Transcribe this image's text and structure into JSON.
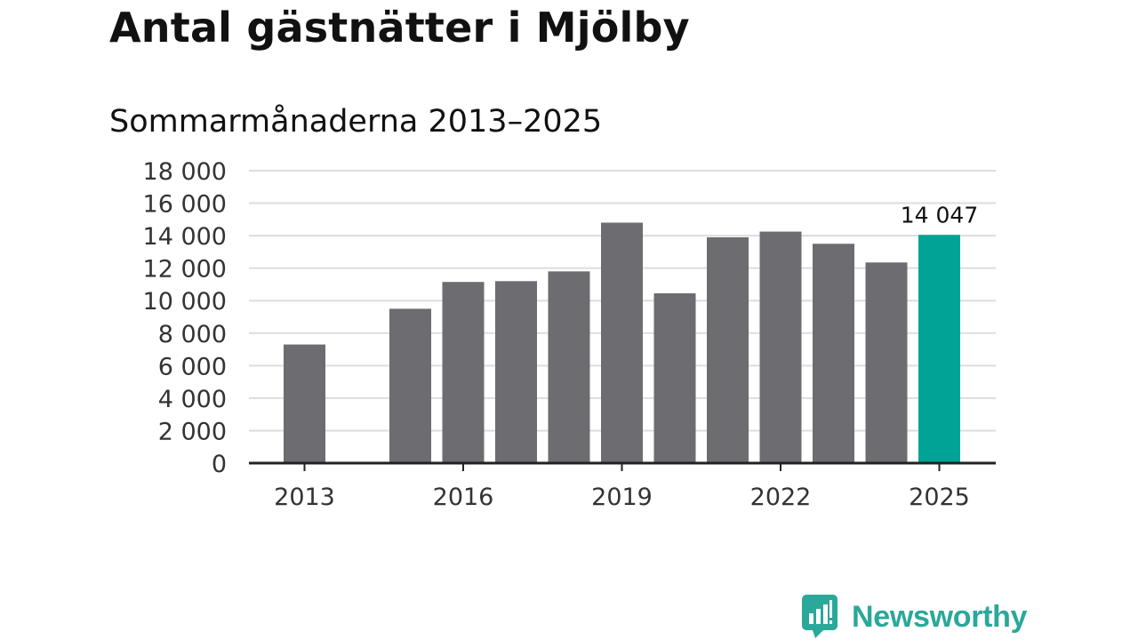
{
  "title": "Antal gästnätter i Mjölby",
  "subtitle": "Sommarmånaderna 2013–2025",
  "brand": {
    "name": "Newsworthy",
    "color": "#2aa89a"
  },
  "colors": {
    "bar": "#6d6c71",
    "highlight": "#00a396",
    "grid": "#dddddd",
    "axis": "#222222"
  },
  "chart_data": {
    "type": "bar",
    "title": "Antal gästnätter i Mjölby",
    "subtitle": "Sommarmånaderna 2013–2025",
    "categories": [
      "2013",
      "2014",
      "2015",
      "2016",
      "2017",
      "2018",
      "2019",
      "2020",
      "2021",
      "2022",
      "2023",
      "2024",
      "2025"
    ],
    "values": [
      7300,
      null,
      9500,
      11150,
      11200,
      11800,
      14800,
      10450,
      13900,
      14250,
      13500,
      12350,
      14047
    ],
    "highlight_index": 12,
    "highlight_label": "14 047",
    "ylim": [
      0,
      18000
    ],
    "yticks": [
      0,
      2000,
      4000,
      6000,
      8000,
      10000,
      12000,
      14000,
      16000,
      18000
    ],
    "ytick_labels": [
      "0",
      "2 000",
      "4 000",
      "6 000",
      "8 000",
      "10 000",
      "12 000",
      "14 000",
      "16 000",
      "18 000"
    ],
    "xtick_labels": [
      "2013",
      "2016",
      "2019",
      "2022",
      "2025"
    ],
    "xticks": [
      "2013",
      "2016",
      "2019",
      "2022",
      "2025"
    ],
    "grid": true,
    "xlabel": "",
    "ylabel": ""
  }
}
